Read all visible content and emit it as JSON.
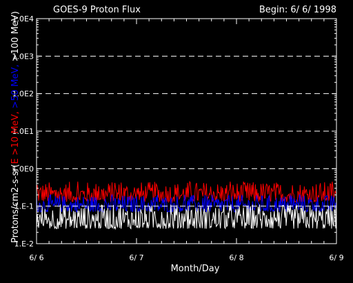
{
  "chart_data": {
    "type": "line",
    "title": "GOES-9 Proton Flux",
    "begin_label": "Begin: 6/ 6/ 1998",
    "xlabel": "Month/Day",
    "ylabel": {
      "prefix": "Protons/cm2-s-sr",
      "open": "(",
      "part1": "E >10 MeV,",
      "part2": ">50 MeV,",
      "part3": ">100 MeV",
      "close": ")"
    },
    "y_scale": "log",
    "ylim": [
      0.01,
      10000
    ],
    "y_ticks": [
      {
        "value": 10000,
        "label": "1.0E4"
      },
      {
        "value": 1000,
        "label": "1.0E3"
      },
      {
        "value": 100,
        "label": "1.0E2"
      },
      {
        "value": 10,
        "label": "1.0E1"
      },
      {
        "value": 1,
        "label": "1.0E0"
      },
      {
        "value": 0.1,
        "label": "1.E-1"
      },
      {
        "value": 0.01,
        "label": "1.E-2"
      }
    ],
    "gridlines": [
      1000,
      100,
      10,
      1,
      0.1
    ],
    "x_range_days": [
      0,
      3
    ],
    "x_ticks": [
      {
        "value": 0,
        "label": "6/ 6"
      },
      {
        "value": 1,
        "label": "6/ 7"
      },
      {
        "value": 2,
        "label": "6/ 8"
      },
      {
        "value": 3,
        "label": "6/ 9"
      }
    ],
    "series": [
      {
        "energy": ">10 MeV",
        "color": "#ff0000",
        "typical_min": 0.13,
        "typical_max": 0.45
      },
      {
        "energy": ">50 MeV",
        "color": "#0000ff",
        "typical_min": 0.07,
        "typical_max": 0.2
      },
      {
        "energy": ">100 MeV",
        "color": "#ffffff",
        "typical_min": 0.025,
        "typical_max": 0.11
      }
    ],
    "axis_color": "#ffffff",
    "background": "#000000"
  }
}
